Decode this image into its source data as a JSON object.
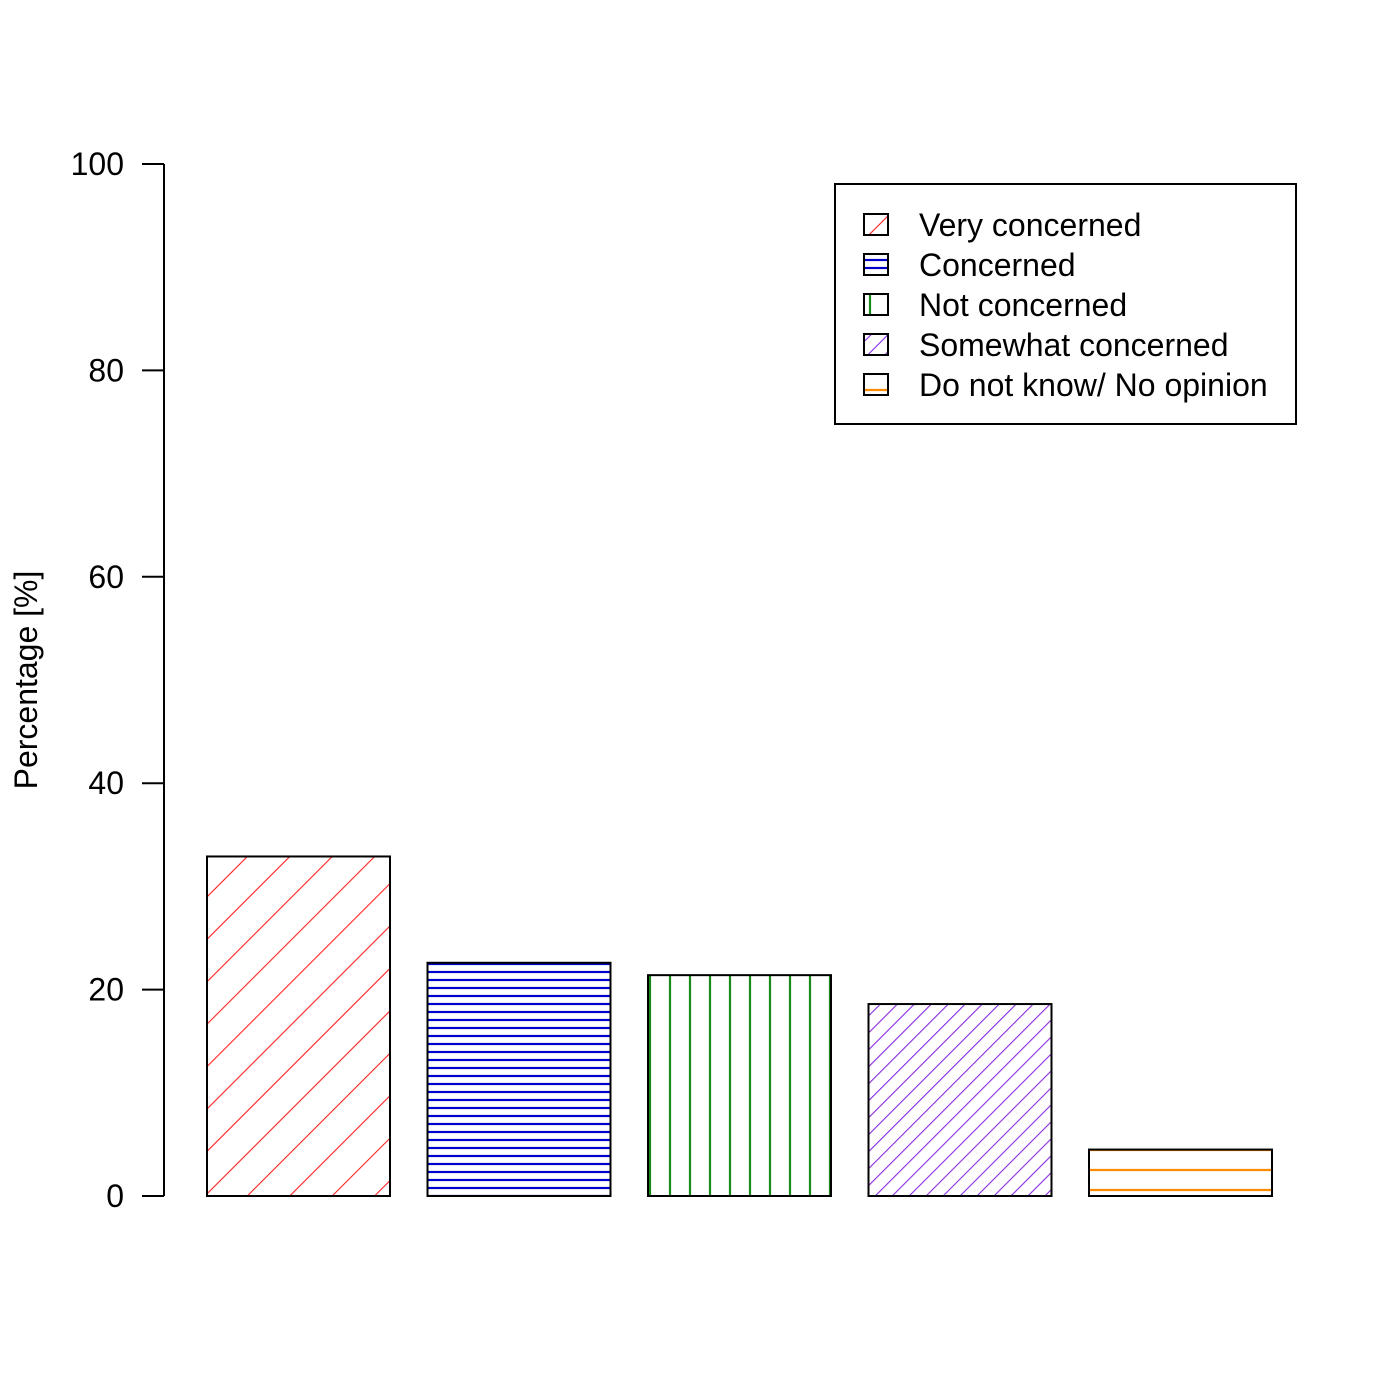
{
  "chart_data": {
    "type": "bar",
    "title": "",
    "xlabel": "",
    "ylabel": "Percentage [%]",
    "ylim": [
      0,
      100
    ],
    "yticks": [
      0,
      20,
      40,
      60,
      80,
      100
    ],
    "grid": false,
    "legend_position": "top-right",
    "categories": [
      "Very concerned",
      "Concerned",
      "Not concerned",
      "Somewhat concerned",
      "Do not know/ No opinion"
    ],
    "values": [
      32.9,
      22.6,
      21.4,
      18.6,
      4.5
    ],
    "series": [
      {
        "name": "Very concerned",
        "value": 32.9,
        "color": "#ff2020",
        "pattern": "diagonal-wide"
      },
      {
        "name": "Concerned",
        "value": 22.6,
        "color": "#0000cc",
        "pattern": "horizontal-dense"
      },
      {
        "name": "Not concerned",
        "value": 21.4,
        "color": "#1a8a1a",
        "pattern": "vertical"
      },
      {
        "name": "Somewhat concerned",
        "value": 18.6,
        "color": "#8a2be2",
        "pattern": "diagonal-dense"
      },
      {
        "name": "Do not know/ No opinion",
        "value": 4.5,
        "color": "#ff8c00",
        "pattern": "horizontal-wide"
      }
    ]
  }
}
